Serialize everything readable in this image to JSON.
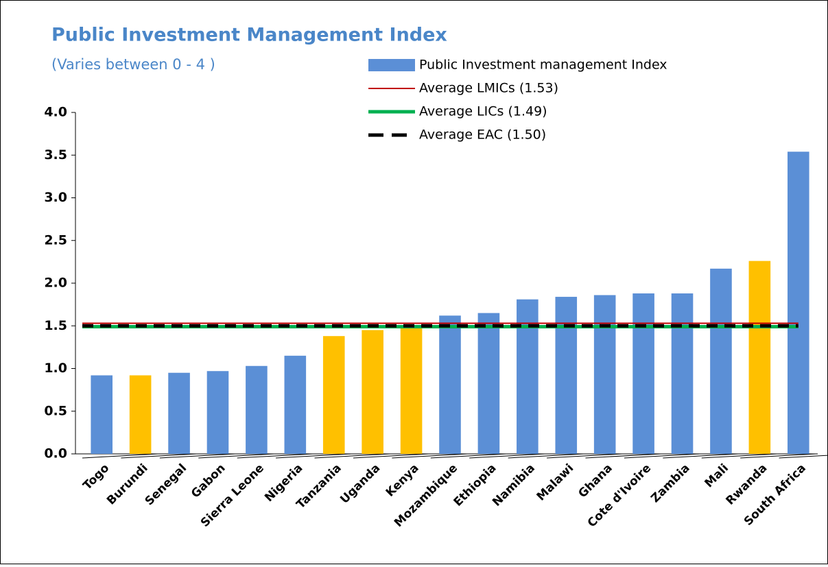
{
  "chart_data": {
    "type": "bar",
    "title": "Public Investment Management Index",
    "subtitle": "(Varies between 0 - 4 )",
    "name": "Public Investment management Index",
    "color": "#5b8fd6",
    "categories": [
      "Togo",
      "Burundi",
      "Senegal",
      "Gabon",
      "Sierra Leone",
      "Nigeria",
      "Tanzania",
      "Uganda",
      "Kenya",
      "Mozambique",
      "Ethiopia",
      "Namibia",
      "Malawi",
      "Ghana",
      "Cote d'Ivoire",
      "Zambia",
      "Mali",
      "Rwanda",
      "South Africa"
    ],
    "values": [
      0.92,
      0.92,
      0.95,
      0.97,
      1.03,
      1.15,
      1.38,
      1.45,
      1.5,
      1.62,
      1.65,
      1.81,
      1.84,
      1.86,
      1.88,
      1.88,
      2.17,
      2.26,
      3.54
    ],
    "colors": [
      "#5b8fd6",
      "#ffc000",
      "#5b8fd6",
      "#5b8fd6",
      "#5b8fd6",
      "#5b8fd6",
      "#ffc000",
      "#ffc000",
      "#ffc000",
      "#5b8fd6",
      "#5b8fd6",
      "#5b8fd6",
      "#5b8fd6",
      "#5b8fd6",
      "#5b8fd6",
      "#5b8fd6",
      "#5b8fd6",
      "#ffc000",
      "#5b8fd6"
    ],
    "reference_lines": [
      {
        "name": "Average LMICs (1.53)",
        "value": 1.53,
        "color": "#c00000",
        "style": "solid"
      },
      {
        "name": "Average LICs (1.49)",
        "value": 1.49,
        "color": "#00b050",
        "style": "solid"
      },
      {
        "name": "Average EAC (1.50)",
        "value": 1.5,
        "color": "#000000",
        "style": "dashed"
      }
    ],
    "ylim": [
      0,
      4
    ],
    "yticks": [
      {
        "value": 0,
        "label": "0.0"
      },
      {
        "value": 0.5,
        "label": "0.5"
      },
      {
        "value": 1,
        "label": "1.0"
      },
      {
        "value": 1.5,
        "label": "1.5"
      },
      {
        "value": 2,
        "label": "2.0"
      },
      {
        "value": 2.5,
        "label": "2.5"
      },
      {
        "value": 3,
        "label": "3.0"
      },
      {
        "value": 3.5,
        "label": "3.5"
      },
      {
        "value": 4,
        "label": "4.0"
      }
    ]
  }
}
